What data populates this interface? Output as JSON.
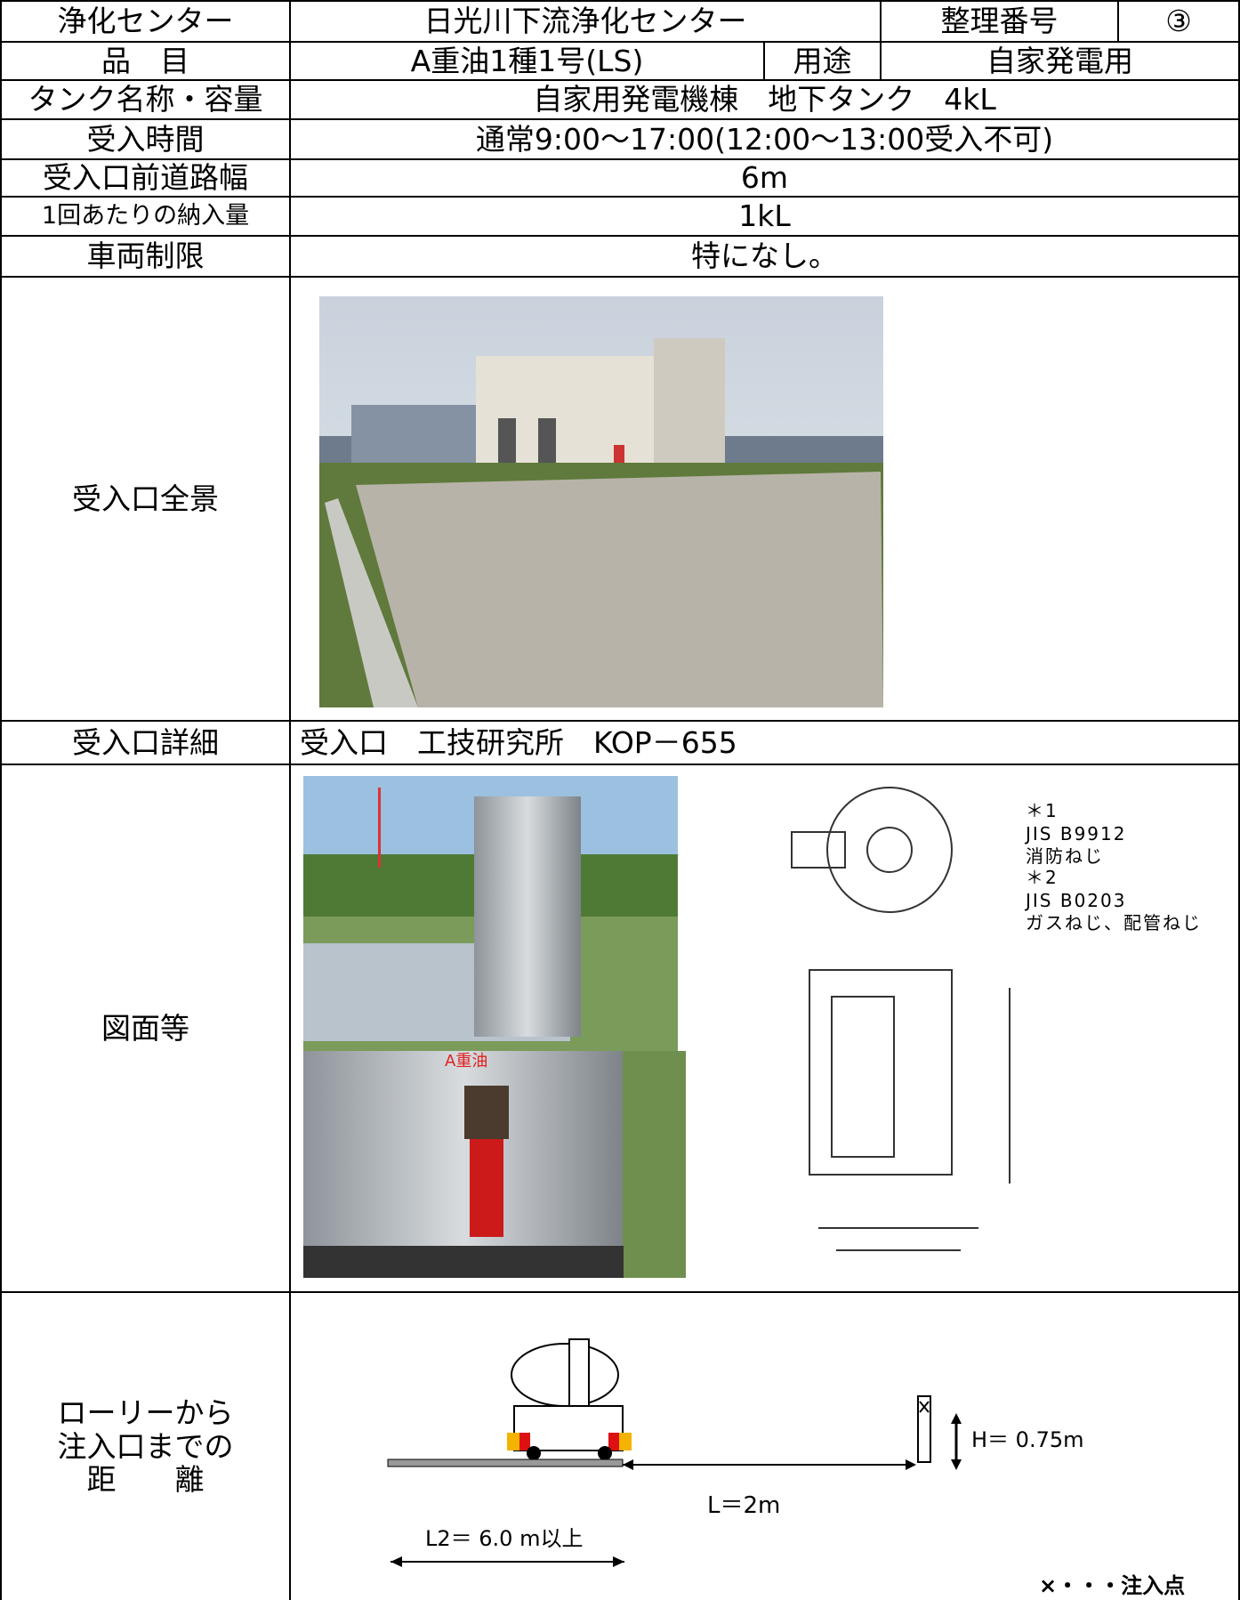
{
  "rows": [
    [
      "浄化センター",
      "日光川下流浄化センター",
      "整理番号",
      "③"
    ],
    [
      "品　目",
      "A重油1種1号(LS)",
      "用途",
      "自家発電用"
    ],
    [
      "タンク名称・容量",
      "自家用発電機棟　地下タンク　4kL"
    ],
    [
      "受入時間",
      "通常9:00～17:00(12:00～13:00受入不可)"
    ],
    [
      "受入口前道路幅",
      "6m"
    ],
    [
      "1回あたりの納入量",
      "1kL"
    ],
    [
      "車両制限",
      "特になし。"
    ],
    [
      "受入口全景"
    ],
    [
      "受入口詳細",
      "受入口　工技研究所　KOP－655"
    ],
    [
      "図面等"
    ],
    [
      "ローリーから\n注入口までの\n距　　離"
    ]
  ],
  "drawing_notes": [
    "＊1",
    "JIS B9912",
    "消防ねじ",
    "＊2",
    "JIS B0203",
    "ガスねじ、配管ねじ"
  ],
  "photo_label": "A重油",
  "distance_diagram": {
    "height": "H＝ 0.75m",
    "distance": "L＝2m",
    "length": "L2＝ 6.0 m以上",
    "legend": "×・・・注入点"
  }
}
